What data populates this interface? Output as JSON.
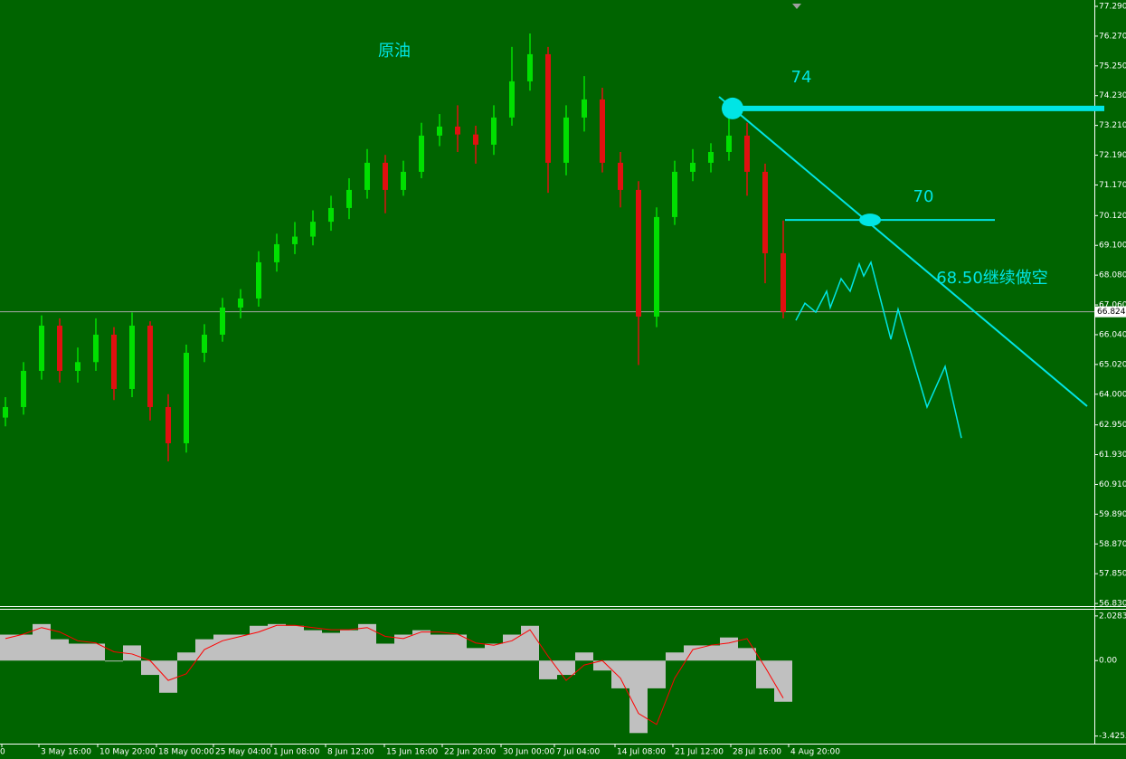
{
  "chart_data": [
    {
      "type": "candlestick",
      "title": "原油",
      "annotations": [
        "74",
        "70",
        "68.50继续做空"
      ],
      "up_color": "#00e000",
      "down_color": "#e01010",
      "line_color": "#00e5e5",
      "background": "#006400",
      "xlim": [
        -0.3,
        60.2
      ],
      "ylim": [
        56.74,
        77.507
      ],
      "yticks": [
        {
          "value": 77.29,
          "label": "77.290"
        },
        {
          "value": 76.27,
          "label": "76.270"
        },
        {
          "value": 75.25,
          "label": "75.250"
        },
        {
          "value": 74.23,
          "label": "74.230"
        },
        {
          "value": 73.21,
          "label": "73.210"
        },
        {
          "value": 72.19,
          "label": "72.190"
        },
        {
          "value": 71.17,
          "label": "71.170"
        },
        {
          "value": 70.12,
          "label": "70.120"
        },
        {
          "value": 69.1,
          "label": "69.100"
        },
        {
          "value": 68.08,
          "label": "68.080"
        },
        {
          "value": 67.06,
          "label": "67.060"
        },
        {
          "value": 66.04,
          "label": "66.040"
        },
        {
          "value": 65.02,
          "label": "65.020"
        },
        {
          "value": 64,
          "label": "64.000"
        },
        {
          "value": 62.95,
          "label": "62.950"
        },
        {
          "value": 61.93,
          "label": "61.930"
        },
        {
          "value": 60.91,
          "label": "60.910"
        },
        {
          "value": 59.89,
          "label": "59.890"
        },
        {
          "value": 58.87,
          "label": "58.870"
        },
        {
          "value": 57.85,
          "label": "57.850"
        },
        {
          "value": 56.83,
          "label": "56.830"
        }
      ],
      "xticks": [
        {
          "value": -0.2,
          "label": "0"
        },
        {
          "value": 1.85,
          "label": "3 May 16:00"
        },
        {
          "value": 5.1,
          "label": "10 May 20:00"
        },
        {
          "value": 8.35,
          "label": "18 May 00:00"
        },
        {
          "value": 11.5,
          "label": "25 May 04:00"
        },
        {
          "value": 14.7,
          "label": "1 Jun 08:00"
        },
        {
          "value": 17.7,
          "label": "8 Jun 12:00"
        },
        {
          "value": 20.95,
          "label": "15 Jun 16:00"
        },
        {
          "value": 24.15,
          "label": "22 Jun 20:00"
        },
        {
          "value": 27.4,
          "label": "30 Jun 00:00"
        },
        {
          "value": 30.35,
          "label": "7 Jul 04:00"
        },
        {
          "value": 33.7,
          "label": "14 Jul 08:00"
        },
        {
          "value": 36.9,
          "label": "21 Jul 12:00"
        },
        {
          "value": 40.1,
          "label": "28 Jul 16:00"
        },
        {
          "value": 43.3,
          "label": "4 Aug 20:00"
        }
      ],
      "current_price": 66.824,
      "open": [
        63.2,
        63.56,
        64.8,
        66.35,
        64.8,
        65.1,
        66.04,
        64.18,
        66.35,
        63.56,
        62.32,
        65.42,
        66.04,
        66.97,
        67.28,
        68.52,
        69.14,
        69.4,
        69.91,
        70.38,
        71.0,
        71.93,
        71.0,
        71.62,
        72.86,
        73.17,
        72.9,
        72.55,
        73.48,
        74.72,
        75.65,
        71.93,
        73.48,
        74.1,
        71.93,
        71.0,
        66.66,
        70.07,
        71.62,
        71.93,
        72.3,
        72.86,
        71.62,
        68.83
      ],
      "high": [
        63.9,
        65.1,
        66.7,
        66.6,
        65.6,
        66.6,
        66.3,
        66.8,
        66.5,
        64.0,
        65.7,
        66.4,
        67.3,
        67.6,
        68.9,
        69.5,
        69.9,
        70.3,
        70.8,
        71.4,
        72.4,
        72.2,
        72.0,
        73.3,
        73.6,
        73.9,
        73.2,
        73.9,
        75.9,
        76.36,
        75.9,
        73.9,
        74.9,
        74.5,
        72.3,
        71.3,
        70.4,
        72.0,
        72.4,
        72.6,
        73.7,
        73.3,
        71.9,
        69.95
      ],
      "low": [
        62.9,
        63.3,
        64.5,
        64.4,
        64.4,
        64.8,
        63.8,
        63.9,
        63.1,
        61.7,
        62.0,
        65.1,
        65.8,
        66.6,
        67.0,
        68.2,
        68.8,
        69.1,
        69.6,
        70.0,
        70.7,
        70.2,
        70.8,
        71.4,
        72.5,
        72.3,
        71.9,
        72.2,
        73.2,
        74.4,
        70.9,
        71.5,
        73.0,
        71.6,
        70.4,
        65.0,
        66.3,
        69.8,
        71.3,
        71.6,
        72.0,
        70.8,
        67.8,
        66.6
      ],
      "close": [
        63.56,
        64.8,
        66.35,
        64.8,
        65.1,
        66.04,
        64.18,
        66.35,
        63.56,
        62.32,
        65.42,
        66.04,
        66.97,
        67.28,
        68.52,
        69.14,
        69.4,
        69.91,
        70.38,
        71.0,
        71.93,
        71.0,
        71.62,
        72.86,
        73.17,
        72.9,
        72.55,
        73.48,
        74.72,
        75.65,
        71.93,
        73.48,
        74.1,
        71.93,
        71.0,
        66.66,
        70.07,
        71.62,
        71.93,
        72.3,
        72.86,
        71.62,
        68.83,
        66.82
      ],
      "lines": [
        {
          "x": [
            39.45,
            59.8
          ],
          "values": [
            74.19,
            63.59
          ]
        },
        {
          "x": [
            40.2,
            60.75
          ],
          "values": [
            73.79,
            73.79
          ]
        },
        {
          "x": [
            43.1,
            54.7
          ],
          "values": [
            69.97,
            69.97
          ]
        },
        {
          "x": [
            43.7,
            44.2,
            44.8,
            45.4,
            45.6,
            46.2,
            46.7,
            47.2,
            47.45,
            47.85,
            48.95,
            49.35,
            50.95,
            51.95,
            52.85
          ],
          "values": [
            66.53,
            67.12,
            66.81,
            67.53,
            66.97,
            67.96,
            67.53,
            68.46,
            68.05,
            68.52,
            65.88,
            66.91,
            63.56,
            64.95,
            62.5
          ]
        }
      ],
      "points": [
        {
          "x": 40.2,
          "value": 73.79
        },
        {
          "x": 47.8,
          "value": 69.97
        }
      ]
    },
    {
      "type": "histogram",
      "color": "#c0c0c0",
      "signal_color": "#ff0000",
      "ylim": [
        -3.77,
        2.31
      ],
      "yticks": [
        2.0283,
        {
          "value": 0,
          "label": "0.00"
        },
        -3.4253
      ],
      "values": [
        1.18,
        1.18,
        1.66,
        0.97,
        0.77,
        0.77,
        -0.04,
        0.69,
        -0.65,
        -1.46,
        0.37,
        0.97,
        1.18,
        1.18,
        1.58,
        1.66,
        1.58,
        1.38,
        1.26,
        1.38,
        1.66,
        0.77,
        1.18,
        1.38,
        1.18,
        1.18,
        0.57,
        0.77,
        1.18,
        1.58,
        -0.85,
        -0.65,
        0.37,
        -0.45,
        -1.26,
        -3.29,
        -1.26,
        0.37,
        0.69,
        0.69,
        1.05,
        0.57,
        -1.26,
        -1.87
      ],
      "signal": [
        1.0,
        1.2,
        1.5,
        1.3,
        0.9,
        0.8,
        0.4,
        0.3,
        0.0,
        -0.9,
        -0.6,
        0.5,
        0.9,
        1.1,
        1.3,
        1.6,
        1.6,
        1.5,
        1.4,
        1.4,
        1.5,
        1.1,
        1.0,
        1.3,
        1.3,
        1.2,
        0.8,
        0.7,
        0.9,
        1.4,
        0.2,
        -0.9,
        -0.2,
        0.0,
        -0.8,
        -2.4,
        -2.9,
        -0.8,
        0.5,
        0.7,
        0.8,
        1.0,
        -0.3,
        -1.7
      ]
    }
  ]
}
